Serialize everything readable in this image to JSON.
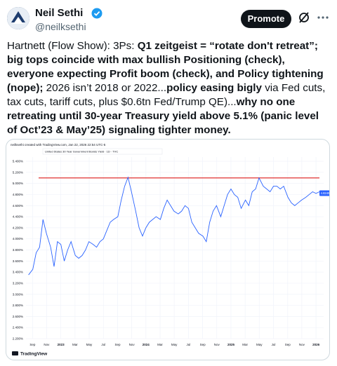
{
  "author": {
    "name": "Neil Sethi",
    "handle": "@neilksethi"
  },
  "buttons": {
    "promote": "Promote"
  },
  "tweet": {
    "text_parts": [
      {
        "text": "Hartnett (Flow Show): 3Ps: ",
        "bold": false
      },
      {
        "text": "Q1 zeitgeist = “rotate don't retreat”; big tops coincide with max bullish Positioning (check), everyone expecting Profit boom (check), and Policy tightening (nope);",
        "bold": true
      },
      {
        "text": " 2026 isn’t 2018 or 2022...",
        "bold": false
      },
      {
        "text": "policy easing bigly",
        "bold": true
      },
      {
        "text": " via Fed cuts, tax cuts, tariff cuts, plus $0.6tn Fed/Trump QE)...",
        "bold": false
      },
      {
        "text": "why no one retreating until 30-year Treasury yield above 5.1% (panic level of Oct’23 & May’25) signaling tighter money.",
        "bold": true
      }
    ]
  },
  "chart_data": {
    "type": "line",
    "credit": "neilksethi created with TradingView.com, Jan 22, 2026 22:54 UTC-5",
    "legend_text": "United States 30 Year Government Bonds Yield · 1D · TVC",
    "brand": "TradingView",
    "x": [
      2022.62,
      2022.67,
      2022.71,
      2022.75,
      2022.79,
      2022.83,
      2022.88,
      2022.92,
      2022.96,
      2023.0,
      2023.04,
      2023.08,
      2023.12,
      2023.17,
      2023.21,
      2023.25,
      2023.29,
      2023.33,
      2023.38,
      2023.42,
      2023.46,
      2023.5,
      2023.54,
      2023.58,
      2023.62,
      2023.67,
      2023.71,
      2023.75,
      2023.79,
      2023.83,
      2023.88,
      2023.92,
      2023.96,
      2024.0,
      2024.04,
      2024.08,
      2024.12,
      2024.17,
      2024.21,
      2024.25,
      2024.29,
      2024.33,
      2024.38,
      2024.42,
      2024.46,
      2024.5,
      2024.54,
      2024.58,
      2024.62,
      2024.67,
      2024.71,
      2024.75,
      2024.79,
      2024.83,
      2024.88,
      2024.92,
      2024.96,
      2025.0,
      2025.04,
      2025.08,
      2025.12,
      2025.17,
      2025.21,
      2025.25,
      2025.29,
      2025.33,
      2025.38,
      2025.42,
      2025.46,
      2025.5,
      2025.54,
      2025.58,
      2025.62,
      2025.67,
      2025.71,
      2025.75,
      2025.79,
      2025.83,
      2025.88,
      2025.92,
      2025.96,
      2026.0,
      2026.04
    ],
    "series": [
      {
        "name": "United States 30 Year Government Bonds Yield",
        "color": "#2962ff",
        "values": [
          3.35,
          3.45,
          3.75,
          3.85,
          4.35,
          4.1,
          3.85,
          3.5,
          3.95,
          3.9,
          3.6,
          3.8,
          3.95,
          3.7,
          3.65,
          3.7,
          3.8,
          3.95,
          3.9,
          3.85,
          3.95,
          4.0,
          4.15,
          4.3,
          4.35,
          4.4,
          4.7,
          4.95,
          5.11,
          4.85,
          4.5,
          4.2,
          4.05,
          4.2,
          4.3,
          4.35,
          4.4,
          4.35,
          4.55,
          4.7,
          4.6,
          4.5,
          4.45,
          4.5,
          4.6,
          4.55,
          4.3,
          4.2,
          4.1,
          4.05,
          3.95,
          4.3,
          4.5,
          4.6,
          4.4,
          4.6,
          4.8,
          4.9,
          4.8,
          4.75,
          4.55,
          4.7,
          4.6,
          4.85,
          4.9,
          5.1,
          4.95,
          4.9,
          4.85,
          4.95,
          4.95,
          4.9,
          4.95,
          4.75,
          4.65,
          4.6,
          4.65,
          4.7,
          4.75,
          4.8,
          4.85,
          4.82,
          4.85
        ]
      }
    ],
    "threshold": 5.1,
    "threshold_color": "#e03131",
    "last_value": 4.8245,
    "xlim": [
      2022.59,
      2026.09
    ],
    "xticks": [
      {
        "value": 2022.667,
        "label": "Sep"
      },
      {
        "value": 2022.833,
        "label": "Nov"
      },
      2023,
      {
        "value": 2023.167,
        "label": "Mar"
      },
      {
        "value": 2023.333,
        "label": "May"
      },
      {
        "value": 2023.5,
        "label": "Jul"
      },
      {
        "value": 2023.667,
        "label": "Sep"
      },
      {
        "value": 2023.833,
        "label": "Nov"
      },
      2024,
      {
        "value": 2024.167,
        "label": "Mar"
      },
      {
        "value": 2024.333,
        "label": "May"
      },
      {
        "value": 2024.5,
        "label": "Jul"
      },
      {
        "value": 2024.667,
        "label": "Sep"
      },
      {
        "value": 2024.833,
        "label": "Nov"
      },
      2025,
      {
        "value": 2025.167,
        "label": "Mar"
      },
      {
        "value": 2025.333,
        "label": "May"
      },
      {
        "value": 2025.5,
        "label": "Jul"
      },
      {
        "value": 2025.667,
        "label": "Sep"
      },
      {
        "value": 2025.833,
        "label": "Nov"
      },
      2026
    ],
    "ylim": [
      2.2,
      5.4
    ],
    "yticks": [
      {
        "value": 2.2,
        "label": "2.200%"
      },
      {
        "value": 2.4,
        "label": "2.400%"
      },
      {
        "value": 2.6,
        "label": "2.600%"
      },
      {
        "value": 2.8,
        "label": "2.800%"
      },
      {
        "value": 3.0,
        "label": "3.000%"
      },
      {
        "value": 3.2,
        "label": "3.200%"
      },
      {
        "value": 3.4,
        "label": "3.400%"
      },
      {
        "value": 3.6,
        "label": "3.600%"
      },
      {
        "value": 3.8,
        "label": "3.800%"
      },
      {
        "value": 4.0,
        "label": "4.000%"
      },
      {
        "value": 4.2,
        "label": "4.200%"
      },
      {
        "value": 4.4,
        "label": "4.400%"
      },
      {
        "value": 4.6,
        "label": "4.600%"
      },
      {
        "value": 4.8,
        "label": "4.800%"
      },
      {
        "value": 5.0,
        "label": "5.000%"
      },
      {
        "value": 5.2,
        "label": "5.200%"
      },
      {
        "value": 5.4,
        "label": "5.400%"
      }
    ],
    "grid": true
  }
}
